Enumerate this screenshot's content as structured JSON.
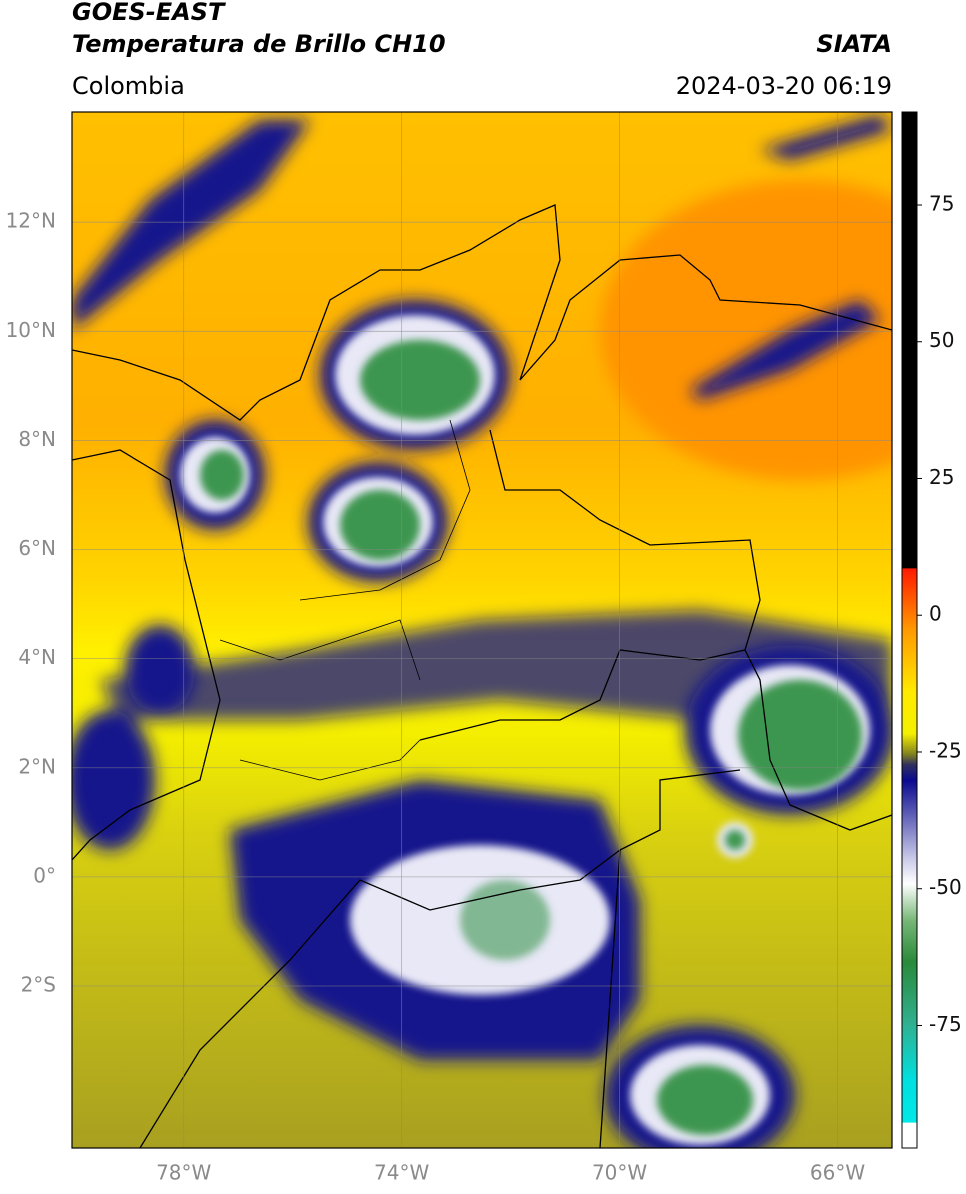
{
  "chart_data": {
    "type": "map",
    "title": "GOES-EAST",
    "subtitle": "Temperatura de Brillo CH10",
    "source": "SIATA",
    "region": "Colombia",
    "date": "2024-03-20 06:19",
    "xlim": [
      -80.05,
      -65.0
    ],
    "ylim": [
      -4.97,
      14.02
    ],
    "xticks": [
      {
        "value": -78,
        "label": "78°W"
      },
      {
        "value": -74,
        "label": "74°W"
      },
      {
        "value": -70,
        "label": "70°W"
      },
      {
        "value": -66,
        "label": "66°W"
      }
    ],
    "yticks": [
      {
        "value": 12,
        "label": "12°N"
      },
      {
        "value": 10,
        "label": "10°N"
      },
      {
        "value": 8,
        "label": "8°N"
      },
      {
        "value": 6,
        "label": "6°N"
      },
      {
        "value": 4,
        "label": "4°N"
      },
      {
        "value": 2,
        "label": "2°N"
      },
      {
        "value": 0,
        "label": "0°"
      },
      {
        "value": -2,
        "label": "2°S"
      }
    ],
    "clim": [
      -97.4,
      92
    ],
    "cticks": [
      75,
      50,
      25,
      0,
      -25,
      -50,
      -75
    ],
    "grid": true
  }
}
